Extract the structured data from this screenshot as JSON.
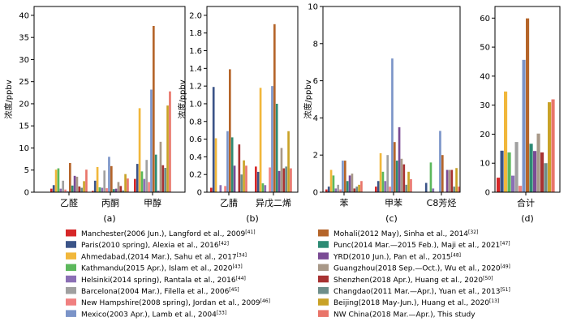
{
  "chart_data": {
    "type": "bar",
    "series": [
      {
        "name": "Manchester(2006 Jun.), Langford et al., 2009",
        "ref": "[41]",
        "color": "#d62728"
      },
      {
        "name": "Paris(2010 spring), Alexia et al., 2016",
        "ref": "[42]",
        "color": "#3b5488"
      },
      {
        "name": "Ahmedabad,(2014 Mar.), Sahu et al., 2017",
        "ref": "[34]",
        "color": "#f1b73b"
      },
      {
        "name": "Kathmandu(2015 Apr.), Islam et al., 2020",
        "ref": "[43]",
        "color": "#5cb85c"
      },
      {
        "name": "Helsinki(2014 spring), Rantala et al., 2016",
        "ref": "[44]",
        "color": "#8b6fb5"
      },
      {
        "name": "Barcelona(2004 Mar.), Filella et al., 2006",
        "ref": "[45]",
        "color": "#a0a0a0"
      },
      {
        "name": "New Hampshire(2008 spring), Jordan et al., 2009",
        "ref": "[46]",
        "color": "#f08080"
      },
      {
        "name": "Mexico(2003 Apr.), Lamb et al., 2004",
        "ref": "[33]",
        "color": "#7b94c8"
      },
      {
        "name": "Mohali(2012 May), Sinha et al., 2014",
        "ref": "[32]",
        "color": "#b5652a"
      },
      {
        "name": "Punc(2014 Mar.—2015 Feb.), Maji et al., 2021",
        "ref": "[47]",
        "color": "#2e8b74"
      },
      {
        "name": "YRD(2010 Jun.), Pan et al., 2015",
        "ref": "[48]",
        "color": "#7a4b94"
      },
      {
        "name": "Guangzhou(2018 Sep.—Oct.), Wu et al., 2020",
        "ref": "[49]",
        "color": "#a89888"
      },
      {
        "name": "Shenzhen(2018 Apr.), Huang et al., 2020",
        "ref": "[50]",
        "color": "#a83232"
      },
      {
        "name": "Changdao(2011 Mar.—Apr.), Yuan et al., 2013",
        "ref": "[51]",
        "color": "#6e8e8a"
      },
      {
        "name": "Beijing(2018 May-Jun.), Huang et al., 2020",
        "ref": "[13]",
        "color": "#c9a227"
      },
      {
        "name": "NW China(2018 Mar.—Apr.), This study",
        "ref": "",
        "color": "#e9756a"
      }
    ],
    "panels": [
      {
        "label": "(a)",
        "ylabel": "浓度/ppbv",
        "ylim": [
          0,
          42
        ],
        "yticks": [
          0,
          5,
          10,
          15,
          20,
          25,
          30,
          35,
          40
        ],
        "tick_labels": [
          "0",
          "5",
          "10",
          "15",
          "20",
          "25",
          "30",
          "35",
          "40"
        ],
        "categories": [
          "乙醛",
          "丙酮",
          "甲醇"
        ],
        "values": [
          [
            0.8,
            1.6,
            5.1,
            5.4,
            0.8,
            2.6,
            0.6,
            0.2,
            6.6,
            1.5,
            3.7,
            3.5,
            1.3,
            1.0,
            2.5,
            5.1
          ],
          [
            0.3,
            2.6,
            5.7,
            1.1,
            1.0,
            4.9,
            0.9,
            8.0,
            5.9,
            0.7,
            0.8,
            2.3,
            1.4,
            0.4,
            4.1,
            3.1
          ],
          [
            3.0,
            6.4,
            19.0,
            4.7,
            3.0,
            7.3,
            2.3,
            23.2,
            37.6,
            8.5,
            0.3,
            11.4,
            6.1,
            5.5,
            19.6,
            22.8
          ]
        ]
      },
      {
        "label": "(b)",
        "ylabel": "浓度/ppbv",
        "ylim": [
          0,
          2.1
        ],
        "yticks": [
          0,
          0.2,
          0.4,
          0.6,
          0.8,
          1.0,
          1.2,
          1.4,
          1.6,
          1.8,
          2.0
        ],
        "tick_labels": [
          "0",
          "0.2",
          "0.4",
          "0.6",
          "0.8",
          "1.0",
          "1.2",
          "1.4",
          "1.6",
          "1.8",
          "2.0"
        ],
        "categories": [
          "乙腈",
          "异戊二烯"
        ],
        "values": [
          [
            0.05,
            1.19,
            0.61,
            0.0,
            0.08,
            0.0,
            0.07,
            0.69,
            1.39,
            0.62,
            0.3,
            0.0,
            0.54,
            0.2,
            0.36,
            0.3
          ],
          [
            0.29,
            0.23,
            1.18,
            0.1,
            0.08,
            0.0,
            0.28,
            1.2,
            1.9,
            1.0,
            0.24,
            0.5,
            0.27,
            0.29,
            0.69,
            0.27
          ]
        ]
      },
      {
        "label": "(c)",
        "ylabel": "浓度/ppbv",
        "ylim": [
          0,
          10
        ],
        "yticks": [
          0,
          2,
          4,
          6,
          8,
          10
        ],
        "tick_labels": [
          "0",
          "2",
          "4",
          "6",
          "8",
          "10"
        ],
        "categories": [
          "苯",
          "甲苯",
          "C8芳烃"
        ],
        "values": [
          [
            0.15,
            0.3,
            1.2,
            0.9,
            0.2,
            0.4,
            0.15,
            1.7,
            1.7,
            0.6,
            0.9,
            1.0,
            0.2,
            0.3,
            0.4,
            0.6
          ],
          [
            0.3,
            0.6,
            2.1,
            1.1,
            0.6,
            2.0,
            0.3,
            7.2,
            2.7,
            1.7,
            3.5,
            1.8,
            1.5,
            0.4,
            1.1,
            0.7
          ],
          [
            0.0,
            0.5,
            0.0,
            1.6,
            0.2,
            0.0,
            0.0,
            3.3,
            2.0,
            0.0,
            1.2,
            1.2,
            1.2,
            0.3,
            1.3,
            0.3
          ]
        ]
      },
      {
        "label": "(d)",
        "ylabel": "",
        "ylim": [
          0,
          64
        ],
        "yticks": [
          0,
          10,
          20,
          30,
          40,
          50,
          60
        ],
        "tick_labels": [
          "0",
          "10",
          "20",
          "30",
          "40",
          "50",
          "60"
        ],
        "categories": [
          "合计"
        ],
        "values": [
          [
            5.0,
            14.3,
            34.7,
            13.7,
            5.7,
            17.3,
            2.2,
            45.6,
            59.9,
            16.7,
            14.2,
            20.2,
            13.7,
            10.0,
            31.0,
            32.0
          ]
        ]
      }
    ]
  }
}
